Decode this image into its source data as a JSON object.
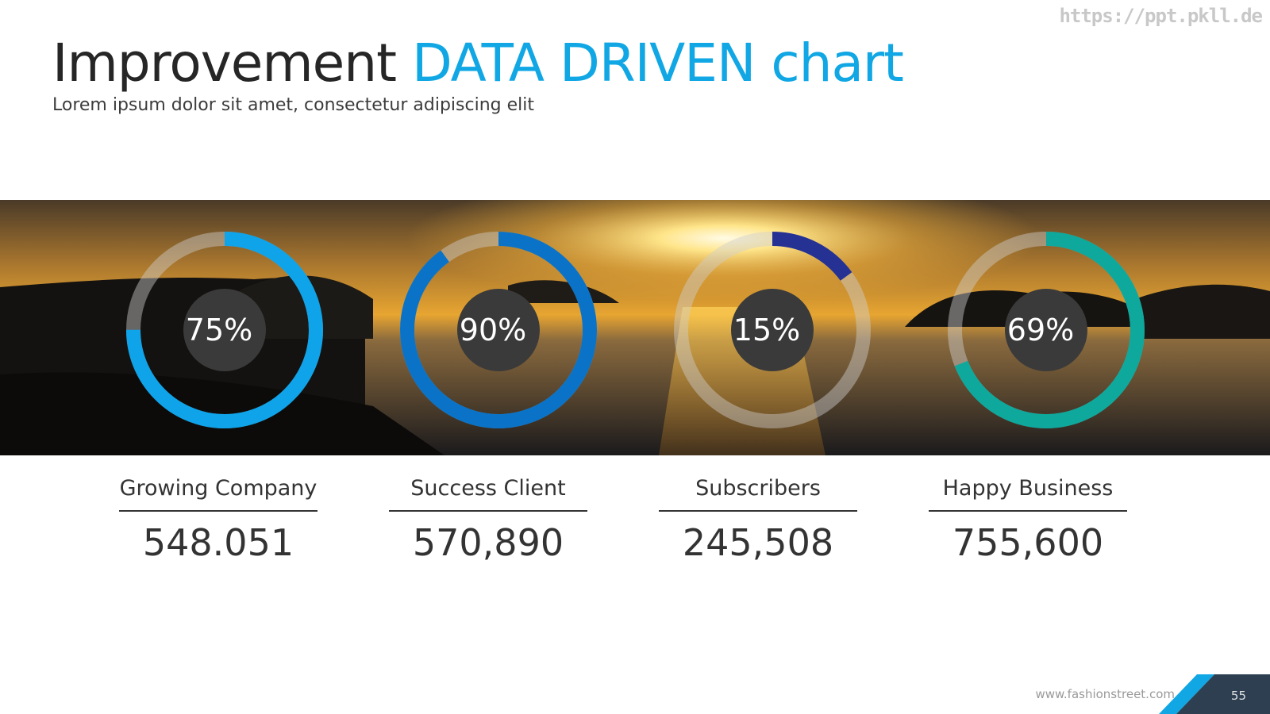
{
  "watermark": "https://ppt.pkll.de",
  "title": {
    "main": "Improvement",
    "accent": "DATA DRIVEN chart"
  },
  "subtitle": "Lorem ipsum dolor sit amet, consectetur adipiscing elit",
  "colors": {
    "accent": "#11a7e4",
    "ring_1": "#0fa3e9",
    "ring_2": "#0b73c7",
    "ring_3": "#253294",
    "ring_4": "#0ea89c",
    "track": "#cfcfcf",
    "center": "#3a3a3a"
  },
  "chart_data": {
    "type": "donut",
    "series": [
      {
        "label": "75%",
        "value": 75,
        "name": "Growing Company",
        "number": "548.051"
      },
      {
        "label": "90%",
        "value": 90,
        "name": "Success Client",
        "number": "570,890"
      },
      {
        "label": "15%",
        "value": 15,
        "name": "Subscribers",
        "number": "245,508"
      },
      {
        "label": "69%",
        "value": 69,
        "name": "Happy Business",
        "number": "755,600"
      }
    ]
  },
  "footer": {
    "url": "www.fashionstreet.com",
    "page": "55"
  }
}
